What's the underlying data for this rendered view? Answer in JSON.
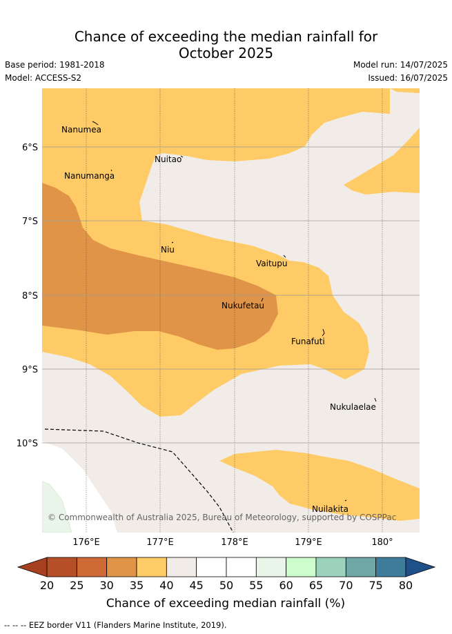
{
  "header": {
    "title_line1": "Chance of exceeding the median rainfall for",
    "title_line2": "October 2025",
    "base_period": "Base period: 1981-2018",
    "model": "Model: ACCESS-S2",
    "model_run": "Model run: 14/07/2025",
    "issued": "Issued: 16/07/2025"
  },
  "map": {
    "lat_labels": [
      "6°S",
      "7°S",
      "8°S",
      "9°S",
      "10°S"
    ],
    "lon_labels": [
      "176°E",
      "177°E",
      "178°E",
      "179°E",
      "180°"
    ],
    "places": [
      "Nanumea",
      "Nuitao",
      "Nanumanga",
      "Niu",
      "Vaitupu",
      "Nukufetau",
      "Funafuti",
      "Nukulaelae",
      "Nuilakita"
    ],
    "copyright": "© Commonwealth of Australia 2025, Bureau of Meteorology, supported by COSPPac"
  },
  "colorbar": {
    "ticks": [
      "20",
      "25",
      "30",
      "35",
      "40",
      "45",
      "50",
      "55",
      "60",
      "65",
      "70",
      "75",
      "80"
    ],
    "label": "Chance of exceeding median rainfall (%)",
    "colors": [
      "#a6401f",
      "#b64e27",
      "#cf6a36",
      "#e09447",
      "#fecb66",
      "#f1ece7",
      "#ffffff",
      "#ffffff",
      "#eaf5e9",
      "#cdfdcd",
      "#9cd1bd",
      "#6fa6a6",
      "#3f7c9c",
      "#1f5088"
    ]
  },
  "footer": {
    "legend": "-- -- -- EEZ border V11 (Flanders Marine Institute, 2019)."
  }
}
